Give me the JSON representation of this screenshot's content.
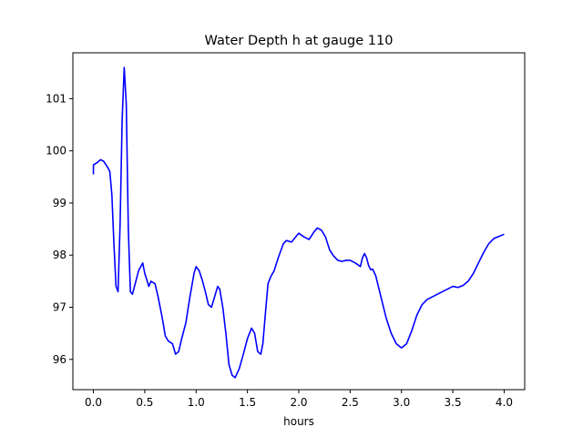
{
  "chart_data": {
    "type": "line",
    "title": "Water Depth h at gauge 110",
    "xlabel": "hours",
    "ylabel": "",
    "xlim": [
      -0.2,
      4.2
    ],
    "ylim": [
      95.42,
      101.88
    ],
    "xticks": [
      0.0,
      0.5,
      1.0,
      1.5,
      2.0,
      2.5,
      3.0,
      3.5,
      4.0
    ],
    "xtick_labels": [
      "0.0",
      "0.5",
      "1.0",
      "1.5",
      "2.0",
      "2.5",
      "3.0",
      "3.5",
      "4.0"
    ],
    "yticks": [
      96,
      97,
      98,
      99,
      100,
      101
    ],
    "ytick_labels": [
      "96",
      "97",
      "98",
      "99",
      "100",
      "101"
    ],
    "grid": false,
    "series": [
      {
        "color": "#0000ff",
        "x": [
          0.0,
          0.0,
          0.04,
          0.07,
          0.1,
          0.14,
          0.16,
          0.18,
          0.2,
          0.22,
          0.24,
          0.26,
          0.28,
          0.3,
          0.32,
          0.34,
          0.36,
          0.38,
          0.4,
          0.44,
          0.48,
          0.5,
          0.54,
          0.56,
          0.6,
          0.63,
          0.67,
          0.7,
          0.73,
          0.77,
          0.8,
          0.83,
          0.86,
          0.9,
          0.94,
          0.98,
          1.0,
          1.03,
          1.06,
          1.09,
          1.12,
          1.15,
          1.18,
          1.21,
          1.23,
          1.26,
          1.29,
          1.32,
          1.35,
          1.38,
          1.42,
          1.46,
          1.5,
          1.54,
          1.57,
          1.6,
          1.63,
          1.65,
          1.68,
          1.7,
          1.73,
          1.76,
          1.8,
          1.85,
          1.88,
          1.93,
          1.97,
          2.0,
          2.05,
          2.1,
          2.15,
          2.18,
          2.22,
          2.26,
          2.3,
          2.34,
          2.38,
          2.42,
          2.46,
          2.5,
          2.55,
          2.6,
          2.62,
          2.64,
          2.66,
          2.68,
          2.7,
          2.72,
          2.75,
          2.8,
          2.85,
          2.9,
          2.95,
          3.0,
          3.05,
          3.1,
          3.15,
          3.2,
          3.25,
          3.3,
          3.35,
          3.4,
          3.45,
          3.5,
          3.55,
          3.6,
          3.65,
          3.7,
          3.75,
          3.8,
          3.85,
          3.9,
          3.95,
          4.0
        ],
        "y": [
          99.55,
          99.73,
          99.78,
          99.83,
          99.8,
          99.68,
          99.6,
          99.15,
          98.2,
          97.4,
          97.3,
          98.6,
          100.6,
          101.6,
          100.9,
          98.5,
          97.3,
          97.25,
          97.4,
          97.7,
          97.85,
          97.65,
          97.4,
          97.5,
          97.45,
          97.2,
          96.8,
          96.45,
          96.35,
          96.3,
          96.1,
          96.15,
          96.4,
          96.7,
          97.2,
          97.65,
          97.78,
          97.7,
          97.52,
          97.3,
          97.05,
          97.0,
          97.2,
          97.4,
          97.35,
          97.0,
          96.5,
          95.9,
          95.7,
          95.65,
          95.82,
          96.1,
          96.4,
          96.6,
          96.5,
          96.15,
          96.1,
          96.3,
          97.0,
          97.45,
          97.6,
          97.7,
          97.95,
          98.22,
          98.28,
          98.25,
          98.35,
          98.42,
          98.35,
          98.3,
          98.45,
          98.52,
          98.48,
          98.35,
          98.1,
          97.98,
          97.9,
          97.88,
          97.9,
          97.9,
          97.85,
          97.78,
          97.95,
          98.03,
          97.95,
          97.8,
          97.72,
          97.73,
          97.6,
          97.2,
          96.8,
          96.5,
          96.3,
          96.22,
          96.3,
          96.55,
          96.85,
          97.05,
          97.15,
          97.2,
          97.25,
          97.3,
          97.35,
          97.4,
          97.38,
          97.42,
          97.5,
          97.65,
          97.85,
          98.05,
          98.22,
          98.32,
          98.36,
          98.4
        ]
      }
    ]
  }
}
